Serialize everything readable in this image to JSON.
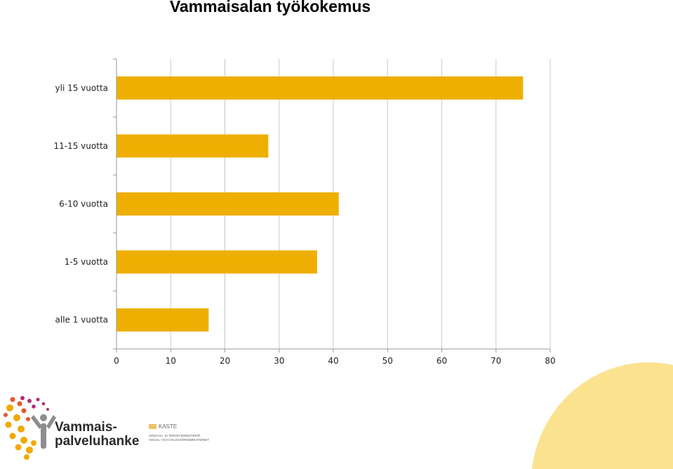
{
  "page": {
    "title": "Vammaisalan työkokemus"
  },
  "chart_data": {
    "type": "bar",
    "orientation": "horizontal",
    "categories": [
      "yli 15 vuotta",
      "11-15 vuotta",
      "6-10 vuotta",
      "1-5 vuotta",
      "alle 1 vuotta"
    ],
    "values": [
      75,
      28,
      41,
      37,
      17
    ],
    "xlim": [
      0,
      80
    ],
    "xticks": [
      "0",
      "10",
      "20",
      "30",
      "40",
      "50",
      "60",
      "70",
      "80"
    ],
    "grid": true,
    "bar_color": "#EEAF02",
    "title": "Vammaisalan työkokemus",
    "xlabel": "",
    "ylabel": ""
  },
  "footer": {
    "logo_line1": "Vammais-",
    "logo_line2": "palveluhanke",
    "kaste_name": "KASTE",
    "kaste_ministry_fi": "SOSIAALI- JA TERVEYSMINISTERIÖ",
    "kaste_ministry_sv": "SOCIAL- OCH HÄLSOVÅRDSMINISTERIET",
    "accent_color": "#FBE28F"
  }
}
